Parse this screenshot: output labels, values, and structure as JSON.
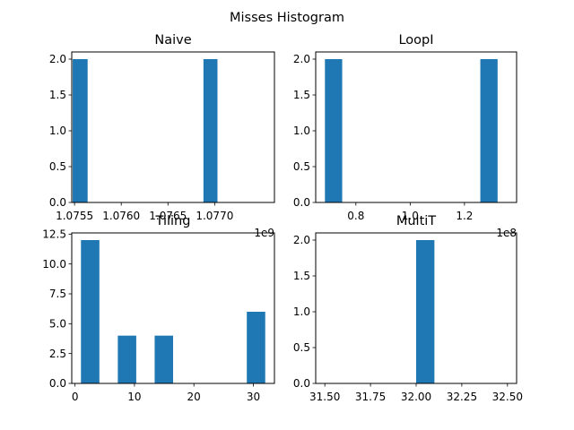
{
  "figure": {
    "suptitle": "Misses Histogram"
  },
  "chart_data": [
    {
      "type": "bar",
      "title": "Naive",
      "xlabel": "",
      "ylabel": "",
      "x_offset_label": "1e9",
      "xlim": [
        1.07547,
        1.07764
      ],
      "ylim": [
        0,
        2.1
      ],
      "x_ticks": [
        1.0755,
        1.076,
        1.0765,
        1.077
      ],
      "x_tick_labels": [
        "1.0755",
        "1.0760",
        "1.0765",
        "1.0770"
      ],
      "y_ticks": [
        0,
        0.5,
        1,
        1.5,
        2
      ],
      "y_tick_labels": [
        "0.0",
        "0.5",
        "1.0",
        "1.5",
        "2.0"
      ],
      "bars": [
        {
          "x0": 1.07548,
          "x1": 1.07564,
          "value": 2
        },
        {
          "x0": 1.07564,
          "x1": 1.07579,
          "value": 0
        },
        {
          "x0": 1.07579,
          "x1": 1.07595,
          "value": 0
        },
        {
          "x0": 1.07595,
          "x1": 1.0761,
          "value": 0
        },
        {
          "x0": 1.0761,
          "x1": 1.07626,
          "value": 0
        },
        {
          "x0": 1.07626,
          "x1": 1.07641,
          "value": 0
        },
        {
          "x0": 1.07641,
          "x1": 1.07657,
          "value": 0
        },
        {
          "x0": 1.07657,
          "x1": 1.07672,
          "value": 0
        },
        {
          "x0": 1.07672,
          "x1": 1.07688,
          "value": 0
        },
        {
          "x0": 1.07688,
          "x1": 1.07703,
          "value": 2
        }
      ],
      "color": "#1f77b4"
    },
    {
      "type": "bar",
      "title": "LoopI",
      "xlabel": "",
      "ylabel": "",
      "x_offset_label": "1e8",
      "xlim": [
        0.652,
        1.392
      ],
      "ylim": [
        0,
        2.1
      ],
      "x_ticks": [
        0.8,
        1.0,
        1.2
      ],
      "x_tick_labels": [
        "0.8",
        "1.0",
        "1.2"
      ],
      "y_ticks": [
        0,
        0.5,
        1,
        1.5,
        2
      ],
      "y_tick_labels": [
        "0.0",
        "0.5",
        "1.0",
        "1.5",
        "2.0"
      ],
      "bars": [
        {
          "x0": 0.686,
          "x1": 0.7496,
          "value": 2
        },
        {
          "x0": 0.7496,
          "x1": 0.8132,
          "value": 0
        },
        {
          "x0": 0.8132,
          "x1": 0.8768,
          "value": 0
        },
        {
          "x0": 0.8768,
          "x1": 0.9404,
          "value": 0
        },
        {
          "x0": 0.9404,
          "x1": 1.004,
          "value": 0
        },
        {
          "x0": 1.004,
          "x1": 1.0676,
          "value": 0
        },
        {
          "x0": 1.0676,
          "x1": 1.1312,
          "value": 0
        },
        {
          "x0": 1.1312,
          "x1": 1.1948,
          "value": 0
        },
        {
          "x0": 1.1948,
          "x1": 1.2584,
          "value": 0
        },
        {
          "x0": 1.2584,
          "x1": 1.322,
          "value": 2
        }
      ],
      "color": "#1f77b4"
    },
    {
      "type": "bar",
      "title": "Tiling",
      "xlabel": "",
      "ylabel": "",
      "xlim": [
        -0.55,
        33.55
      ],
      "ylim": [
        0,
        12.6
      ],
      "x_ticks": [
        0,
        10,
        20,
        30
      ],
      "x_tick_labels": [
        "0",
        "10",
        "20",
        "30"
      ],
      "y_ticks": [
        0,
        2.5,
        5,
        7.5,
        10,
        12.5
      ],
      "y_tick_labels": [
        "0.0",
        "2.5",
        "5.0",
        "7.5",
        "10.0",
        "12.5"
      ],
      "bars": [
        {
          "x0": 1,
          "x1": 4.1,
          "value": 12
        },
        {
          "x0": 4.1,
          "x1": 7.2,
          "value": 0
        },
        {
          "x0": 7.2,
          "x1": 10.3,
          "value": 4
        },
        {
          "x0": 10.3,
          "x1": 13.4,
          "value": 0
        },
        {
          "x0": 13.4,
          "x1": 16.5,
          "value": 4
        },
        {
          "x0": 16.5,
          "x1": 19.6,
          "value": 0
        },
        {
          "x0": 19.6,
          "x1": 22.7,
          "value": 0
        },
        {
          "x0": 22.7,
          "x1": 25.8,
          "value": 0
        },
        {
          "x0": 25.8,
          "x1": 28.9,
          "value": 0
        },
        {
          "x0": 28.9,
          "x1": 32,
          "value": 6
        }
      ],
      "color": "#1f77b4"
    },
    {
      "type": "bar",
      "title": "MultiT",
      "xlabel": "",
      "ylabel": "",
      "xlim": [
        31.45,
        32.55
      ],
      "ylim": [
        0,
        2.1
      ],
      "x_ticks": [
        31.5,
        31.75,
        32.0,
        32.25,
        32.5
      ],
      "x_tick_labels": [
        "31.50",
        "31.75",
        "32.00",
        "32.25",
        "32.50"
      ],
      "y_ticks": [
        0,
        0.5,
        1,
        1.5,
        2
      ],
      "y_tick_labels": [
        "0.0",
        "0.5",
        "1.0",
        "1.5",
        "2.0"
      ],
      "bars": [
        {
          "x0": 31.5,
          "x1": 31.6,
          "value": 0
        },
        {
          "x0": 31.6,
          "x1": 31.7,
          "value": 0
        },
        {
          "x0": 31.7,
          "x1": 31.8,
          "value": 0
        },
        {
          "x0": 31.8,
          "x1": 31.9,
          "value": 0
        },
        {
          "x0": 31.9,
          "x1": 32.0,
          "value": 0
        },
        {
          "x0": 32.0,
          "x1": 32.1,
          "value": 2
        },
        {
          "x0": 32.1,
          "x1": 32.2,
          "value": 0
        },
        {
          "x0": 32.2,
          "x1": 32.3,
          "value": 0
        },
        {
          "x0": 32.3,
          "x1": 32.4,
          "value": 0
        },
        {
          "x0": 32.4,
          "x1": 32.5,
          "value": 0
        }
      ],
      "color": "#1f77b4"
    }
  ]
}
